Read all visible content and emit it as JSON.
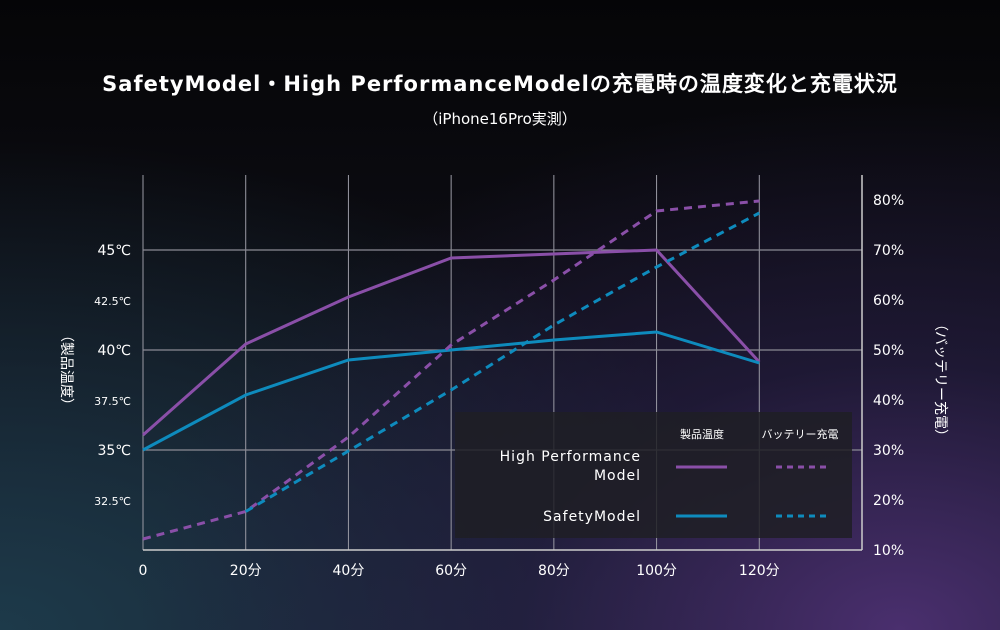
{
  "title": "SafetyModel・High PerformanceModelの充電時の温度変化と充電状況",
  "subtitle": "（iPhone16Pro実測）",
  "chart_data": {
    "type": "line",
    "title": "SafetyModel・High PerformanceModelの充電時の温度変化と充電状況",
    "subtitle": "（iPhone16Pro実測）",
    "xlabel": "",
    "ylabel": "（製品温度）",
    "y2label": "（バッテリー充電）",
    "x": [
      0,
      20,
      40,
      60,
      80,
      100,
      120
    ],
    "xticks": [
      "0",
      "20分",
      "40分",
      "60分",
      "80分",
      "100分",
      "120分"
    ],
    "xlim": [
      0,
      140
    ],
    "ylim": [
      30,
      48.75
    ],
    "yticks": [
      "32.5℃",
      "35℃",
      "37.5℃",
      "40℃",
      "42.5℃",
      "45℃"
    ],
    "ytick_values": [
      32.5,
      35,
      37.5,
      40,
      42.5,
      45
    ],
    "y2lim": [
      10,
      85
    ],
    "y2ticks": [
      "10%",
      "20%",
      "30%",
      "40%",
      "50%",
      "60%",
      "70%",
      "80%"
    ],
    "y2tick_values": [
      10,
      20,
      30,
      40,
      50,
      60,
      70,
      80
    ],
    "grid": true,
    "legend": {
      "position": "bottom-right",
      "col1": "製品温度",
      "col2": "バッテリー充電",
      "rows": [
        "High Performance\nModel",
        "SafetyModel"
      ]
    },
    "series": [
      {
        "name": "High Performance Model 製品温度",
        "axis": "left",
        "style": "solid",
        "color": "#8a4fa8",
        "x": [
          0,
          20,
          40,
          60,
          100,
          120
        ],
        "values": [
          35.75,
          40.3,
          42.65,
          44.6,
          45.0,
          39.4
        ]
      },
      {
        "name": "SafetyModel 製品温度",
        "axis": "left",
        "style": "solid",
        "color": "#0e8bbd",
        "x": [
          0,
          20,
          40,
          60,
          80,
          100,
          120
        ],
        "values": [
          35.0,
          37.75,
          39.5,
          40.0,
          40.5,
          40.9,
          39.35
        ]
      },
      {
        "name": "High Performance Model バッテリー充電",
        "axis": "right",
        "style": "dashed",
        "color": "#8a4fa8",
        "x": [
          0,
          20,
          40,
          60,
          80,
          100,
          120
        ],
        "values": [
          12.2,
          17.7,
          32.6,
          51,
          64,
          77.8,
          79.8
        ]
      },
      {
        "name": "SafetyModel バッテリー充電",
        "axis": "right",
        "style": "dashed",
        "color": "#0e8bbd",
        "x": [
          20,
          40,
          60,
          80,
          100,
          120
        ],
        "values": [
          17.7,
          29.8,
          42,
          55,
          66.6,
          77.4
        ]
      }
    ]
  }
}
